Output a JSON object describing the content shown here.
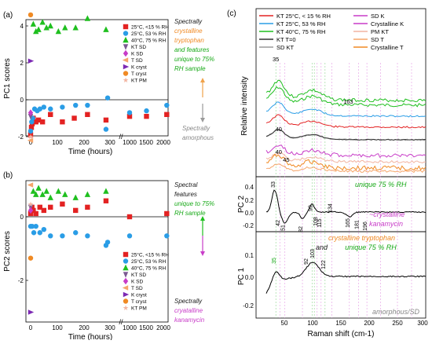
{
  "chart_data": [
    {
      "panel": "(a)",
      "type": "scatter",
      "ylabel": "PC1 scores",
      "xlabel": "Time (hours)",
      "ylim": [
        -3,
        5
      ],
      "yticks": [
        "-2",
        "0",
        "2",
        "4"
      ],
      "xticks": [
        "0",
        "100",
        "200",
        "300",
        "1000",
        "1500",
        "2000"
      ],
      "annotations": [
        {
          "text": "Spectrally",
          "color": "#1a1a1a"
        },
        {
          "text": "crystalline",
          "color": "#f08a24"
        },
        {
          "text": "tryptophan",
          "color": "#f08a24"
        },
        {
          "text": "and features",
          "color": "#17a917"
        },
        {
          "text": "unique to 75%",
          "color": "#17a917"
        },
        {
          "text": "RH sample",
          "color": "#17a917"
        },
        {
          "text": "Spectrally",
          "color": "#888888"
        },
        {
          "text": "amorphous",
          "color": "#888888"
        }
      ],
      "series": [
        {
          "name": "25°C, <15 % RH",
          "color": "#e32222",
          "marker": "square",
          "points": [
            [
              0,
              -1.9
            ],
            [
              3,
              -1.5
            ],
            [
              6,
              -1.3
            ],
            [
              10,
              -1.0
            ],
            [
              20,
              -1.2
            ],
            [
              30,
              -1.1
            ],
            [
              45,
              -1.2
            ],
            [
              75,
              -0.8
            ],
            [
              120,
              -1.2
            ],
            [
              165,
              -1.0
            ],
            [
              215,
              -0.8
            ],
            [
              285,
              -1.1
            ],
            [
              1000,
              -0.9
            ],
            [
              1500,
              -0.9
            ],
            [
              2100,
              -0.8
            ]
          ]
        },
        {
          "name": "25°C, 53 % RH",
          "color": "#2a9de6",
          "marker": "circle",
          "points": [
            [
              0,
              -1.7
            ],
            [
              4,
              -1.2
            ],
            [
              8,
              -1.0
            ],
            [
              15,
              -0.5
            ],
            [
              25,
              -0.6
            ],
            [
              35,
              -0.5
            ],
            [
              50,
              -0.4
            ],
            [
              75,
              -0.5
            ],
            [
              120,
              -0.4
            ],
            [
              170,
              -0.3
            ],
            [
              215,
              -0.3
            ],
            [
              285,
              -1.6
            ],
            [
              350,
              0.1
            ],
            [
              1000,
              -0.7
            ],
            [
              1500,
              -0.6
            ],
            [
              2100,
              -0.3
            ]
          ]
        },
        {
          "name": "40°C, 75 % RH",
          "color": "#1fbf1f",
          "marker": "triangle",
          "points": [
            [
              10,
              4.1
            ],
            [
              20,
              3.7
            ],
            [
              30,
              3.8
            ],
            [
              45,
              4.2
            ],
            [
              60,
              3.9
            ],
            [
              75,
              4.0
            ],
            [
              105,
              3.7
            ],
            [
              130,
              3.9
            ],
            [
              170,
              3.9
            ],
            [
              215,
              4.4
            ],
            [
              285,
              3.8
            ]
          ]
        },
        {
          "name": "KT SD",
          "color": "#7b5a92",
          "marker": "triangle-down",
          "points": [
            [
              0,
              -0.9
            ]
          ]
        },
        {
          "name": "K SD",
          "color": "#c83cc8",
          "marker": "diamond",
          "points": [
            [
              0,
              -0.7
            ]
          ]
        },
        {
          "name": "T SD",
          "color": "#f5a56a",
          "marker": "triangle-left",
          "points": [
            [
              0,
              -2.2
            ]
          ]
        },
        {
          "name": "K cryst",
          "color": "#7d2ab4",
          "marker": "triangle-right",
          "points": [
            [
              0,
              2.1
            ]
          ]
        },
        {
          "name": "T cryst",
          "color": "#f08a24",
          "marker": "circle",
          "points": [
            [
              0,
              4.6
            ]
          ]
        },
        {
          "name": "KT PM",
          "color": "#f2b4a0",
          "marker": "star",
          "points": [
            [
              0,
              -2.0
            ]
          ]
        }
      ]
    },
    {
      "panel": "(b)",
      "type": "scatter",
      "ylabel": "PC2 scores",
      "xlabel": "Time (hours)",
      "ylim": [
        -3.2,
        1.2
      ],
      "yticks": [
        "-2",
        "0"
      ],
      "xticks": [
        "0",
        "100",
        "200",
        "300",
        "1000",
        "1500",
        "2000"
      ],
      "annotations": [
        {
          "text": "Spectral",
          "color": "#1a1a1a"
        },
        {
          "text": "features",
          "color": "#1a1a1a"
        },
        {
          "text": "unique to 75%",
          "color": "#17a917"
        },
        {
          "text": "RH sample",
          "color": "#17a917"
        },
        {
          "text": "Spectrally",
          "color": "#1a1a1a"
        },
        {
          "text": "cryatalline",
          "color": "#c83cc8"
        },
        {
          "text": "kanamycin",
          "color": "#c83cc8"
        }
      ],
      "series": [
        {
          "name": "25°C, <15 % RH",
          "color": "#e32222",
          "marker": "square",
          "points": [
            [
              0,
              0.1
            ],
            [
              5,
              0.3
            ],
            [
              10,
              0.2
            ],
            [
              20,
              0.1
            ],
            [
              35,
              0.3
            ],
            [
              50,
              0.2
            ],
            [
              75,
              0.3
            ],
            [
              120,
              0.4
            ],
            [
              170,
              0.2
            ],
            [
              215,
              0.3
            ],
            [
              285,
              0.5
            ],
            [
              1000,
              0.0
            ],
            [
              2100,
              0.1
            ]
          ]
        },
        {
          "name": "25°C, 53 % RH",
          "color": "#2a9de6",
          "marker": "circle",
          "points": [
            [
              0,
              -0.3
            ],
            [
              6,
              -0.3
            ],
            [
              12,
              -0.5
            ],
            [
              20,
              -0.3
            ],
            [
              35,
              -0.5
            ],
            [
              50,
              -0.4
            ],
            [
              75,
              -0.6
            ],
            [
              120,
              -0.6
            ],
            [
              170,
              -0.5
            ],
            [
              215,
              -0.6
            ],
            [
              285,
              -0.9
            ],
            [
              350,
              -0.8
            ],
            [
              1000,
              -0.6
            ],
            [
              2100,
              -0.6
            ]
          ]
        },
        {
          "name": "40°C, 75 % RH",
          "color": "#1fbf1f",
          "marker": "triangle",
          "points": [
            [
              10,
              0.8
            ],
            [
              20,
              0.7
            ],
            [
              30,
              0.9
            ],
            [
              45,
              0.7
            ],
            [
              60,
              0.8
            ],
            [
              75,
              0.6
            ],
            [
              105,
              0.8
            ],
            [
              130,
              0.7
            ],
            [
              170,
              0.6
            ],
            [
              215,
              0.7
            ],
            [
              285,
              0.8
            ]
          ]
        },
        {
          "name": "KT SD",
          "color": "#7b5a92",
          "marker": "triangle-down",
          "points": [
            [
              0,
              0.3
            ]
          ]
        },
        {
          "name": "K SD",
          "color": "#c83cc8",
          "marker": "diamond",
          "points": [
            [
              0,
              0.2
            ]
          ]
        },
        {
          "name": "T SD",
          "color": "#f5a56a",
          "marker": "triangle-left",
          "points": [
            [
              0,
              1.0
            ]
          ]
        },
        {
          "name": "K cryst",
          "color": "#7d2ab4",
          "marker": "triangle-right",
          "points": [
            [
              0,
              -3.0
            ]
          ]
        },
        {
          "name": "T cryst",
          "color": "#f08a24",
          "marker": "circle",
          "points": [
            [
              0,
              -1.3
            ]
          ]
        },
        {
          "name": "KT PM",
          "color": "#f2b4a0",
          "marker": "star",
          "points": [
            [
              0,
              0.4
            ]
          ]
        }
      ]
    },
    {
      "panel": "(c)",
      "type": "line",
      "xlabel": "Raman shift (cm-1)",
      "xticks": [
        "50",
        "100",
        "150",
        "200",
        "250",
        "300"
      ],
      "xlim": [
        0,
        300
      ],
      "subplots": [
        {
          "ylabel": "Relative intensity",
          "peak_labels": [
            "35",
            "163",
            "40",
            "40",
            "45"
          ]
        },
        {
          "ylabel": "PC 2",
          "yticks": [
            "-0.2",
            "0.0",
            "0.2",
            "0.4"
          ],
          "ann": [
            {
              "text": "unique 75 % RH",
              "color": "#17a917"
            },
            {
              "text": "~crystalline",
              "color": "#c83cc8"
            },
            {
              "text": "kanamycin",
              "color": "#c83cc8"
            }
          ],
          "peak_labels": [
            "33",
            "42",
            "51",
            "82",
            "99",
            "108",
            "115",
            "134",
            "165",
            "181",
            "196"
          ]
        },
        {
          "ylabel": "PC 1",
          "yticks": [
            "-0.2",
            "0.0",
            "0.1"
          ],
          "ann": [
            {
              "text": "crystalline tryptophan",
              "color": "#f08a24"
            },
            {
              "text": "and",
              "color": "#1a1a1a"
            },
            {
              "text": "unique 75 % RH",
              "color": "#17a917"
            },
            {
              "text": "amorphous/SD",
              "color": "#888888"
            }
          ],
          "peak_labels": [
            "35",
            "92",
            "103",
            "122"
          ]
        }
      ],
      "legend": [
        {
          "name": "KT 25°C, < 15 % RH",
          "color": "#e32222"
        },
        {
          "name": "KT 25°C, 53 % RH",
          "color": "#2a9de6"
        },
        {
          "name": "KT 40°C, 75 % RH",
          "color": "#1fbf1f"
        },
        {
          "name": "KT T=0",
          "color": "#333333"
        },
        {
          "name": "SD KT",
          "color": "#9a9a9a"
        },
        {
          "name": "SD K",
          "color": "#c83cc8"
        },
        {
          "name": "Crystalline K",
          "color": "#c83cc8"
        },
        {
          "name": "PM KT",
          "color": "#f2b4a0"
        },
        {
          "name": "SD T",
          "color": "#f5a56a"
        },
        {
          "name": "Crystalline T",
          "color": "#f08a24"
        }
      ]
    }
  ]
}
